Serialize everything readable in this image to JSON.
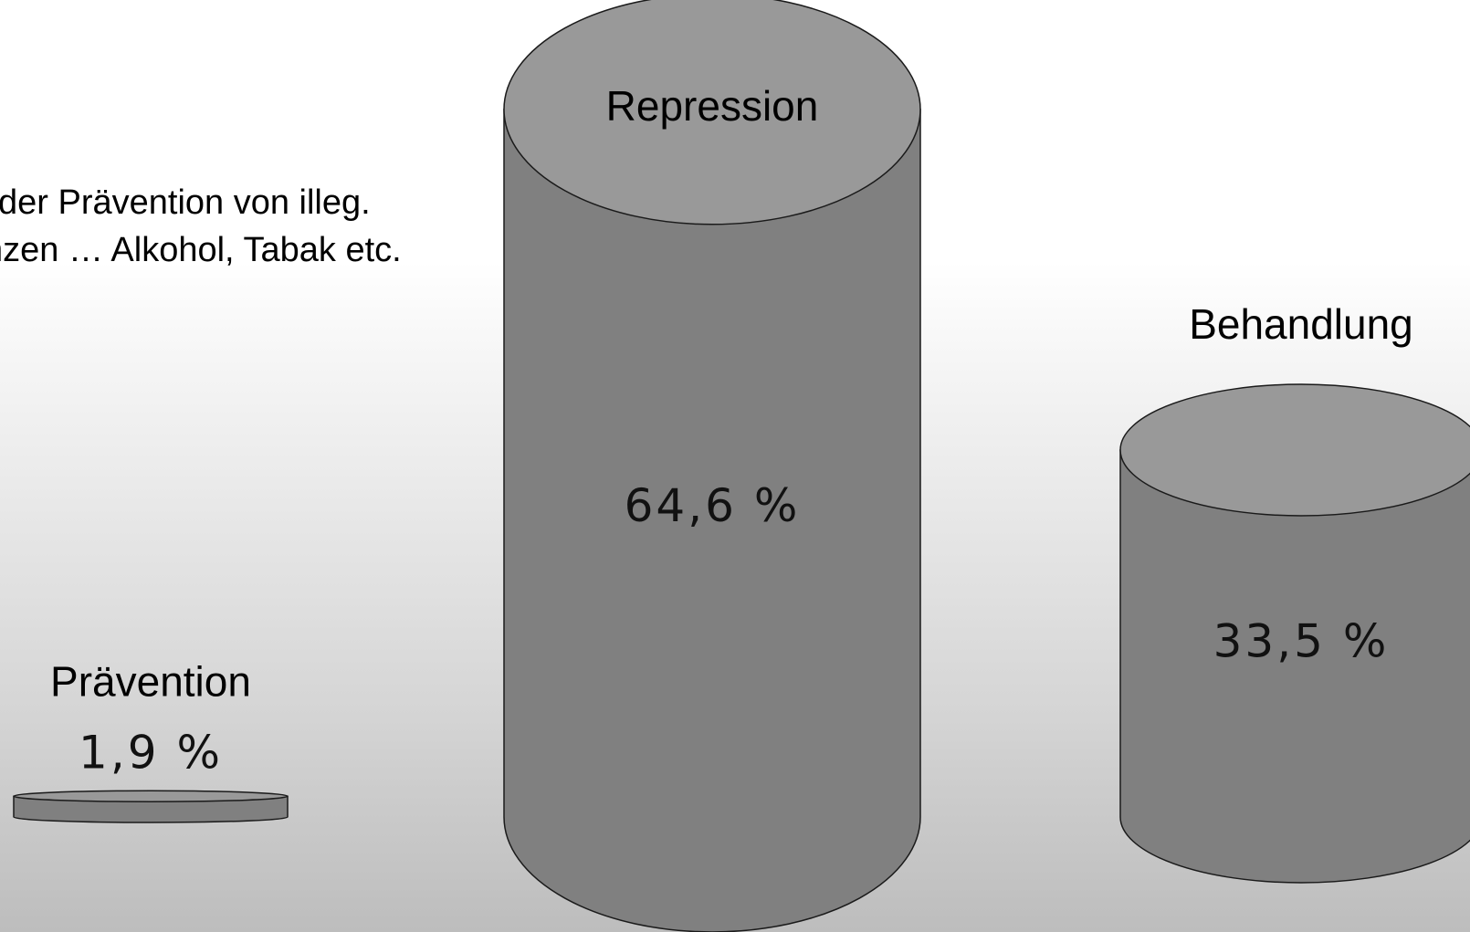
{
  "note": {
    "line1": "der Prävention von illeg.",
    "line2": "nzen … Alkohol, Tabak etc."
  },
  "chart_data": {
    "type": "bar",
    "style": "3d-cylinder",
    "categories": [
      "Prävention",
      "Repression",
      "Behandlung"
    ],
    "values": [
      1.9,
      64.6,
      33.5
    ],
    "value_labels": [
      "1,9 %",
      "64,6 %",
      "33,5 %"
    ],
    "unit": "%",
    "ylim": [
      0,
      64.6
    ],
    "grid": false,
    "colors": {
      "body": "#808080",
      "top": "#999999",
      "stroke": "#1a1a1a"
    }
  }
}
